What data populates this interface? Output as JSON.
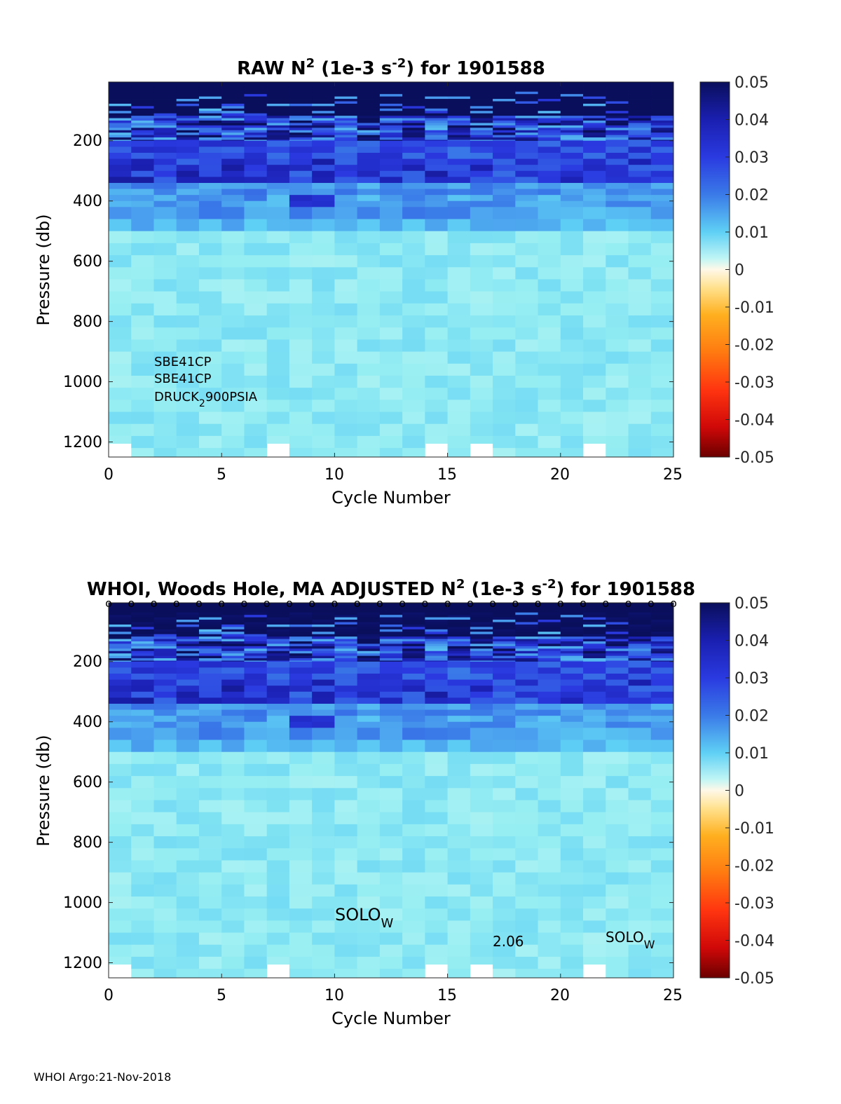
{
  "chart_data": [
    {
      "type": "heatmap",
      "title_prefix": "RAW N",
      "title_sup1": "2",
      "title_mid": " (1e-3 s",
      "title_sup2": "-2",
      "title_suffix": ") for 1901588",
      "xlabel": "Cycle Number",
      "ylabel": "Pressure (db)",
      "xlim": [
        0,
        25
      ],
      "ylim": [
        1250,
        5
      ],
      "xticks": [
        "0",
        "5",
        "10",
        "15",
        "20",
        "25"
      ],
      "yticks": [
        "200",
        "400",
        "600",
        "800",
        "1000",
        "1200"
      ],
      "cycles": 25,
      "annotations": [
        {
          "text": "SBE41CP"
        },
        {
          "text": "SBE41CP"
        },
        {
          "text": "DRUCK",
          "sub": "2",
          "tail": "900PSIA"
        }
      ],
      "cycle_markers": false
    },
    {
      "type": "heatmap",
      "title_prefix": "WHOI, Woods Hole, MA  ADJUSTED N",
      "title_sup1": "2",
      "title_mid": " (1e-3 s",
      "title_sup2": "-2",
      "title_suffix": ") for 1901588",
      "xlabel": "Cycle Number",
      "ylabel": "Pressure (db)",
      "xlim": [
        0,
        25
      ],
      "ylim": [
        1250,
        5
      ],
      "xticks": [
        "0",
        "5",
        "10",
        "15",
        "20",
        "25"
      ],
      "yticks": [
        "200",
        "400",
        "600",
        "800",
        "1000",
        "1200"
      ],
      "cycles": 25,
      "annotations": [
        {
          "text": "SOLO",
          "sub": "W"
        },
        {
          "text": "2.06"
        },
        {
          "text": "SOLO",
          "sub": "W"
        }
      ],
      "cycle_markers": true,
      "marker_symbol": "o"
    }
  ],
  "colorbar": {
    "range": [
      -0.05,
      0.05
    ],
    "ticks": [
      "0.05",
      "0.04",
      "0.03",
      "0.02",
      "0.01",
      "0",
      "-0.01",
      "-0.02",
      "-0.03",
      "-0.04",
      "-0.05"
    ]
  },
  "footer": "WHOI Argo:21-Nov-2018"
}
